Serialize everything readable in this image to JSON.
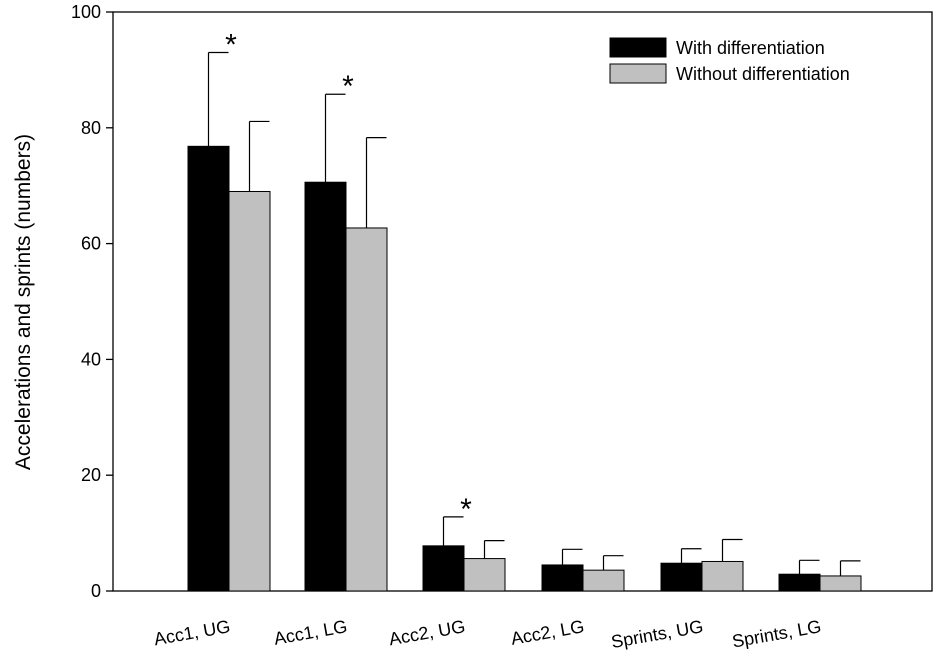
{
  "chart_data": {
    "type": "bar",
    "title": "",
    "xlabel": "",
    "ylabel": "Accelerations and sprints (numbers)",
    "ylim": [
      0,
      100
    ],
    "yticks": [
      0,
      20,
      40,
      60,
      80,
      100
    ],
    "categories": [
      "Acc1, UG",
      "Acc1, LG",
      "Acc2, UG",
      "Acc2, LG",
      "Sprints, UG",
      "Sprints, LG"
    ],
    "series": [
      {
        "name": "With differentiation",
        "color": "#000000",
        "values": [
          76.8,
          70.6,
          7.8,
          4.5,
          4.8,
          2.9
        ],
        "errors": [
          16.2,
          15.2,
          5.0,
          2.7,
          2.5,
          2.4
        ]
      },
      {
        "name": "Without differentiation",
        "color": "#c0c0c0",
        "values": [
          69.0,
          62.7,
          5.6,
          3.6,
          5.1,
          2.6
        ],
        "errors": [
          12.1,
          15.6,
          3.1,
          2.5,
          3.8,
          2.6
        ]
      }
    ],
    "annotations": [
      {
        "category": "Acc1, UG",
        "text": "*"
      },
      {
        "category": "Acc1, LG",
        "text": "*"
      },
      {
        "category": "Acc2, UG",
        "text": "*"
      }
    ],
    "legend": "top-right",
    "grid": false
  }
}
